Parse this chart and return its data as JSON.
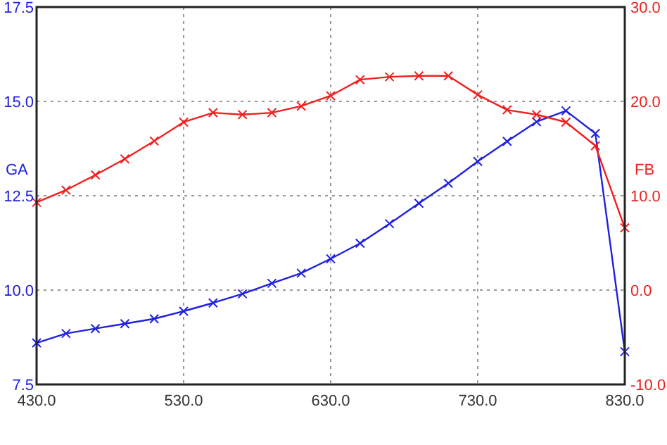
{
  "chart_data": {
    "type": "line",
    "x": [
      430,
      450,
      470,
      490,
      510,
      530,
      550,
      570,
      590,
      610,
      630,
      650,
      670,
      690,
      710,
      730,
      750,
      770,
      790,
      810,
      830
    ],
    "series": [
      {
        "color": "#2020e0",
        "values": [
          8.6,
          8.85,
          8.98,
          9.11,
          9.24,
          9.44,
          9.66,
          9.9,
          10.18,
          10.45,
          10.83,
          11.24,
          11.76,
          12.3,
          12.83,
          13.41,
          13.94,
          14.46,
          14.75,
          14.15,
          8.37
        ]
      },
      {
        "color": "#f02020",
        "axis": "y2",
        "values": [
          9.3,
          10.6,
          12.2,
          13.9,
          15.8,
          17.8,
          18.8,
          18.6,
          18.8,
          19.5,
          20.6,
          22.3,
          22.6,
          22.7,
          22.7,
          20.7,
          19.1,
          18.6,
          17.8,
          15.3,
          6.6
        ]
      }
    ],
    "xlim": [
      430,
      830
    ],
    "xticks": [
      {
        "value": 430,
        "label": "430.0"
      },
      {
        "value": 530,
        "label": "530.0"
      },
      {
        "value": 630,
        "label": "630.0"
      },
      {
        "value": 730,
        "label": "730.0"
      },
      {
        "value": 830,
        "label": "830.0"
      }
    ],
    "ylim": [
      7.5,
      17.5
    ],
    "yticks": [
      7.5,
      {
        "value": 10,
        "label": "10.0"
      },
      {
        "value": 12.5,
        "label": "12.5"
      },
      {
        "value": 15,
        "label": "15.0"
      },
      {
        "value": 17.5,
        "label": "17.5"
      }
    ],
    "y2lim": [
      -10,
      30
    ],
    "y2ticks": [
      {
        "value": -10,
        "label": "-10.0"
      },
      {
        "value": 0,
        "label": "0.0"
      },
      {
        "value": 10,
        "label": "10.0"
      },
      {
        "value": 20,
        "label": "20.0"
      },
      {
        "value": 30,
        "label": "30.0"
      }
    ],
    "ylabel": "GA",
    "y2label": "FB",
    "grid": true,
    "marker": "cross",
    "line_style": "solid"
  }
}
